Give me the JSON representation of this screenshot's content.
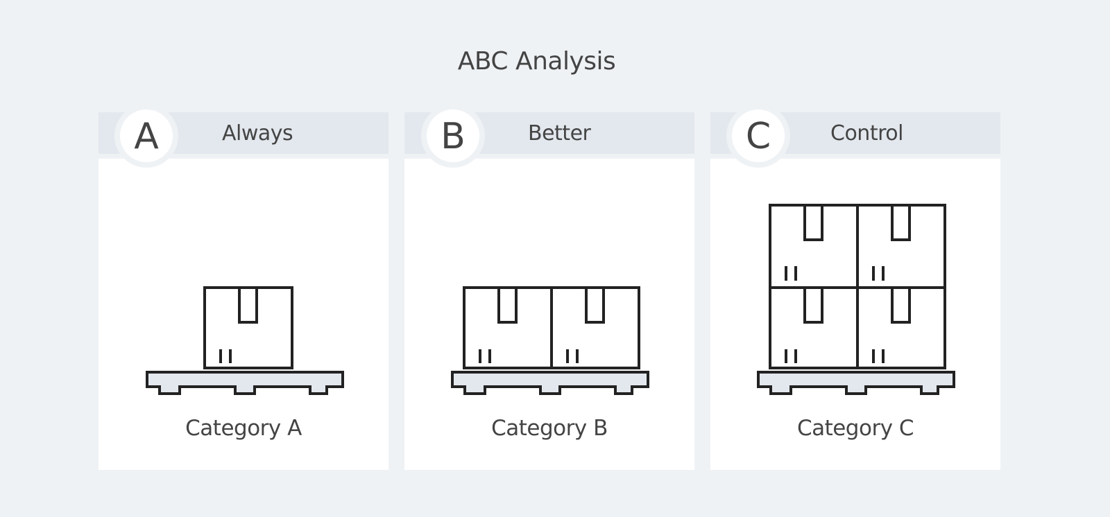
{
  "title": "ABC Analysis",
  "colors": {
    "background": "#eff2f5",
    "header": "#e3e8ee",
    "card": "#ffffff",
    "text": "#444444",
    "stroke": "#222222"
  },
  "categories": [
    {
      "letter": "A",
      "word": "Always",
      "label": "Category A",
      "boxes": 1
    },
    {
      "letter": "B",
      "word": "Better",
      "label": "Category B",
      "boxes": 2
    },
    {
      "letter": "C",
      "word": "Control",
      "label": "Category C",
      "boxes": 4
    }
  ]
}
